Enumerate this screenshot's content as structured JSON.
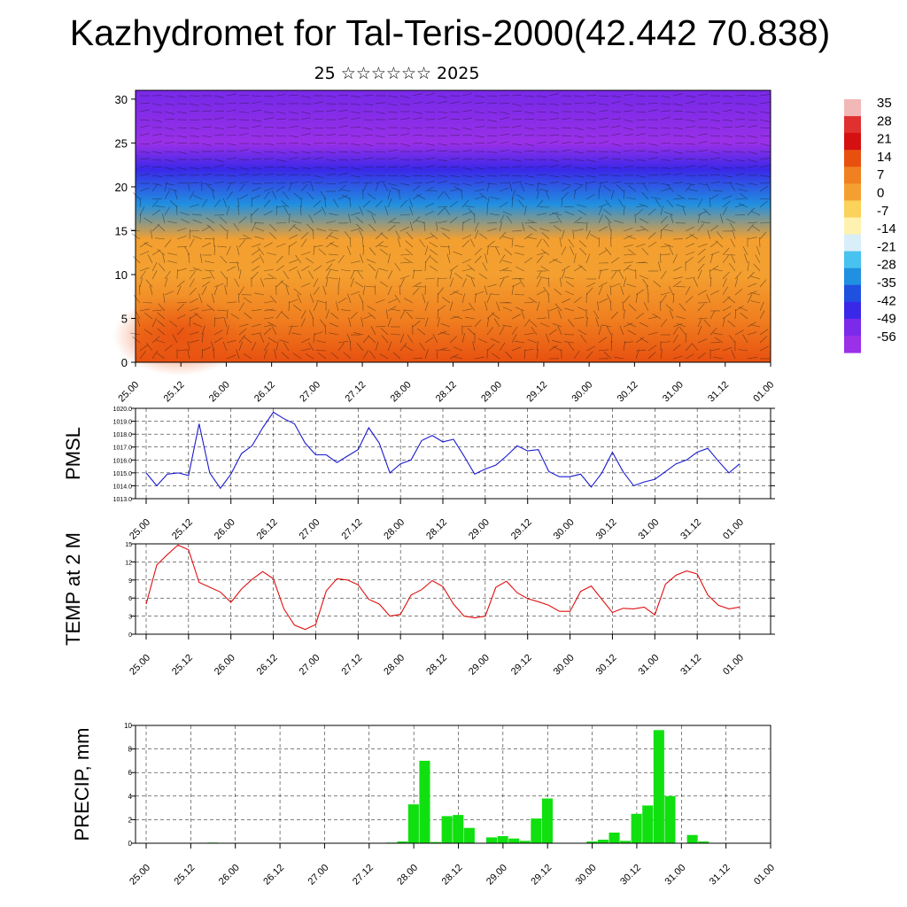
{
  "title": "Kazhydromet for Tal-Teris-2000(42.442 70.838)",
  "subtitle": "25 ☆☆☆☆☆☆ 2025",
  "time_labels": [
    "25.00",
    "25.12",
    "26.00",
    "26.12",
    "27.00",
    "27.12",
    "28.00",
    "28.12",
    "29.00",
    "29.12",
    "30.00",
    "30.12",
    "31.00",
    "31.12",
    "01.00"
  ],
  "colorbar": {
    "labels": [
      "35",
      "28",
      "21",
      "14",
      "7",
      "0",
      "-7",
      "-14",
      "-21",
      "-28",
      "-35",
      "-42",
      "-49",
      "-56"
    ],
    "colors": [
      "#f2b8b8",
      "#e03030",
      "#d41010",
      "#e85010",
      "#f08020",
      "#f4a030",
      "#fbd25a",
      "#fff2b0",
      "#d8eef8",
      "#48c2ee",
      "#2090e0",
      "#2050e0",
      "#3a28e8",
      "#7a2ae8",
      "#9a30e8"
    ]
  },
  "chart_data": [
    {
      "type": "heatmap",
      "name": "upper-air-temperature-wind",
      "title": "",
      "xlabel": "",
      "ylabel": "",
      "x_ticks": [
        "25.00",
        "25.12",
        "26.00",
        "26.12",
        "27.00",
        "27.12",
        "28.00",
        "28.12",
        "29.00",
        "29.12",
        "30.00",
        "30.12",
        "31.00",
        "31.12",
        "01.00"
      ],
      "y_ticks": [
        0,
        5,
        10,
        15,
        20,
        25,
        30
      ],
      "ylim": [
        0,
        31
      ],
      "colorscale_range": [
        -56,
        35
      ],
      "approx_temperature_by_level": {
        "levels": [
          0,
          5,
          10,
          14,
          18,
          22,
          25,
          30
        ],
        "values": [
          14,
          10,
          5,
          0,
          -28,
          -45,
          -56,
          -52
        ]
      },
      "overlay": "wind barbs"
    },
    {
      "type": "line",
      "ylabel": "PMSL",
      "ylim": [
        1013,
        1020
      ],
      "y_ticks": [
        "1013.0",
        "1014.0",
        "1015.0",
        "1016.0",
        "1017.0",
        "1018.0",
        "1019.0",
        "1020.0"
      ],
      "x_ticks": [
        "25.00",
        "25.12",
        "26.00",
        "26.12",
        "27.00",
        "27.12",
        "28.00",
        "28.12",
        "29.00",
        "29.12",
        "30.00",
        "30.12",
        "31.00",
        "31.12",
        "01.00"
      ],
      "color": "#1a1ad0",
      "series": [
        {
          "values": [
            1015.0,
            1014.0,
            1014.9,
            1015.0,
            1014.8,
            1018.8,
            1015.0,
            1013.8,
            1014.9,
            1016.5,
            1017.1,
            1018.5,
            1019.7,
            1019.2,
            1018.8,
            1017.3,
            1016.4,
            1016.4,
            1015.8,
            1016.3,
            1016.8,
            1018.5,
            1017.3,
            1015.0,
            1015.7,
            1016.0,
            1017.5,
            1017.9,
            1017.4,
            1017.6,
            1016.3,
            1014.9,
            1015.3,
            1015.6,
            1016.3,
            1017.1,
            1016.7,
            1016.8,
            1015.1,
            1014.7,
            1014.7,
            1014.9,
            1013.9,
            1015.0,
            1016.6,
            1015.1,
            1014.0,
            1014.3,
            1014.5,
            1015.1,
            1015.7,
            1016.0,
            1016.6,
            1016.9,
            1015.9,
            1015.0,
            1015.7
          ]
        }
      ]
    },
    {
      "type": "line",
      "ylabel": "TEMP at 2 M",
      "ylim": [
        0,
        15
      ],
      "y_ticks": [
        "0",
        "3",
        "6",
        "9",
        "12",
        "15"
      ],
      "x_ticks": [
        "25.00",
        "25.12",
        "26.00",
        "26.12",
        "27.00",
        "27.12",
        "28.00",
        "28.12",
        "29.00",
        "29.12",
        "30.00",
        "30.12",
        "31.00",
        "31.12",
        "01.00"
      ],
      "color": "#e01010",
      "series": [
        {
          "values": [
            5.0,
            11.5,
            13.2,
            14.8,
            14.0,
            8.6,
            7.8,
            7.0,
            5.3,
            7.5,
            9.1,
            10.4,
            9.2,
            4.2,
            1.5,
            0.8,
            1.6,
            7.2,
            9.2,
            9.0,
            8.2,
            5.8,
            5.0,
            3.0,
            3.3,
            6.5,
            7.4,
            8.9,
            7.9,
            5.0,
            3.0,
            2.7,
            3.0,
            7.8,
            8.8,
            6.9,
            5.9,
            5.4,
            4.8,
            3.8,
            3.8,
            7.1,
            8.0,
            5.8,
            3.6,
            4.3,
            4.2,
            4.5,
            3.2,
            8.3,
            9.8,
            10.5,
            10.0,
            6.5,
            4.8,
            4.2,
            4.5
          ]
        }
      ]
    },
    {
      "type": "bar",
      "ylabel": "PRECIP, mm",
      "ylim": [
        0,
        10
      ],
      "y_ticks": [
        "0",
        "2",
        "4",
        "6",
        "8",
        "10"
      ],
      "x_ticks": [
        "25.00",
        "25.12",
        "26.00",
        "26.12",
        "27.00",
        "27.12",
        "28.00",
        "28.12",
        "29.00",
        "29.12",
        "30.00",
        "30.12",
        "31.00",
        "31.12",
        "01.00"
      ],
      "color": "#10e010",
      "series": [
        {
          "values": [
            0,
            0,
            0,
            0,
            0,
            0,
            0.05,
            0,
            0,
            0,
            0,
            0,
            0,
            0,
            0,
            0,
            0,
            0,
            0,
            0,
            0,
            0,
            0.05,
            0.15,
            3.3,
            7.0,
            0.1,
            2.3,
            2.4,
            1.3,
            0,
            0.5,
            0.6,
            0.4,
            0.2,
            2.1,
            3.8,
            0,
            0,
            0,
            0.15,
            0.3,
            0.9,
            0.2,
            2.5,
            3.2,
            9.6,
            4.0,
            0,
            0.7,
            0.15,
            0,
            0,
            0,
            0,
            0,
            0
          ]
        }
      ]
    }
  ]
}
